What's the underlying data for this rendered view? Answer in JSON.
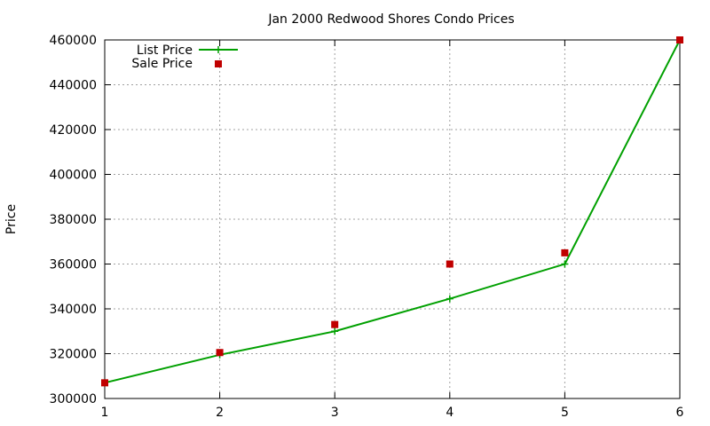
{
  "chart_data": {
    "type": "line",
    "title": "Jan 2000 Redwood Shores Condo Prices",
    "xlabel": "",
    "ylabel": "Price",
    "xlim": [
      1,
      6
    ],
    "ylim": [
      300000,
      460000
    ],
    "x_ticks": [
      "1",
      "2",
      "3",
      "4",
      "5",
      "6"
    ],
    "y_ticks": [
      "300000",
      "320000",
      "340000",
      "360000",
      "380000",
      "400000",
      "420000",
      "440000",
      "460000"
    ],
    "grid": true,
    "legend_position": "top-left",
    "series": [
      {
        "name": "List Price",
        "style": "line-with-plus-markers",
        "color": "#00a000",
        "x": [
          1,
          2,
          3,
          4,
          5,
          6
        ],
        "values": [
          307000,
          319500,
          330000,
          344500,
          360000,
          460000
        ]
      },
      {
        "name": "Sale Price",
        "style": "square-points",
        "color": "#c00000",
        "x": [
          1,
          2,
          3,
          4,
          5,
          6
        ],
        "values": [
          307000,
          320500,
          333000,
          360000,
          365000,
          460000
        ]
      }
    ]
  }
}
